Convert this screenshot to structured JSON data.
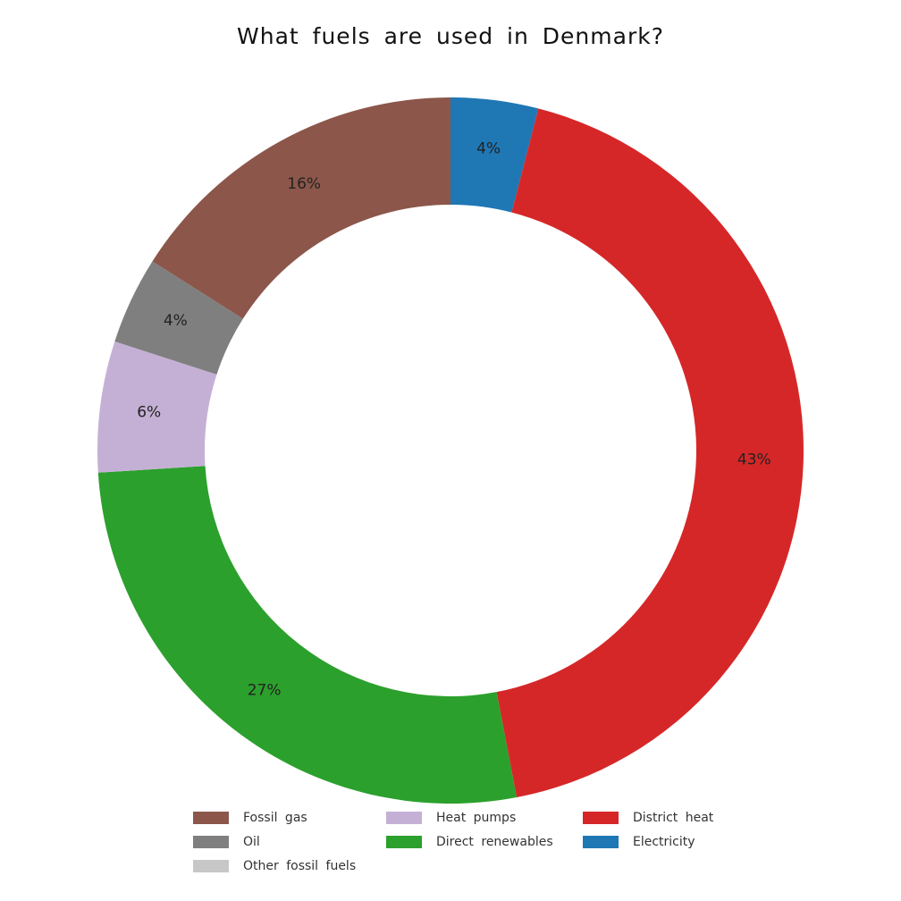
{
  "chart_data": {
    "type": "pie",
    "style": "donut",
    "title": "What fuels are used in Denmark?",
    "categories": [
      "Electricity",
      "District heat",
      "Direct renewables",
      "Heat pumps",
      "Other fossil fuels",
      "Oil",
      "Fossil gas"
    ],
    "values": [
      4,
      43,
      27,
      6,
      0,
      4,
      16
    ],
    "labels": [
      "4%",
      "43%",
      "27%",
      "6%",
      "",
      "4%",
      "16%"
    ],
    "colors": [
      "#1f77b4",
      "#d62728",
      "#2ca02c",
      "#c5b0d5",
      "#c7c7c7",
      "#7f7f7f",
      "#8c564b"
    ],
    "start": "top",
    "direction": "clockwise",
    "legend": {
      "placement": "bottom",
      "columns": [
        [
          {
            "label": "Fossil gas",
            "color": "#8c564b"
          },
          {
            "label": "Oil",
            "color": "#7f7f7f"
          },
          {
            "label": "Other fossil fuels",
            "color": "#c7c7c7"
          }
        ],
        [
          {
            "label": "Heat pumps",
            "color": "#c5b0d5"
          },
          {
            "label": "Direct renewables",
            "color": "#2ca02c"
          }
        ],
        [
          {
            "label": "District heat",
            "color": "#d62728"
          },
          {
            "label": "Electricity",
            "color": "#1f77b4"
          }
        ]
      ]
    }
  }
}
